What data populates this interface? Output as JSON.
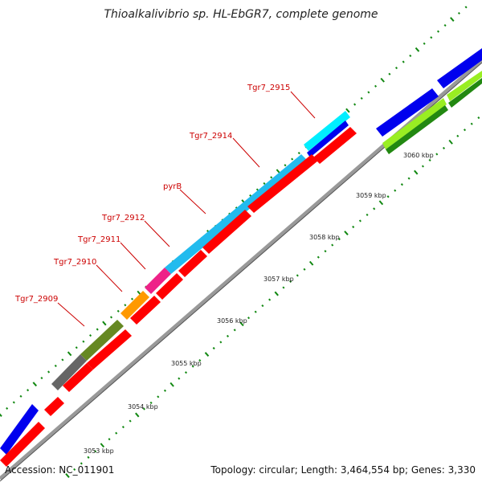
{
  "header": {
    "title": "Thioalkalivibrio sp. HL-EbGR7, complete genome"
  },
  "footer": {
    "accession": "Accession: NC_011901",
    "summary": "Topology: circular; Length: 3,464,554 bp; Genes: 3,330"
  },
  "colors": {
    "backbone": "#999999",
    "tick_green": "#118811",
    "gene_red": "#ff0000",
    "gene_blue": "#0000ee",
    "gene_cyan": "#22bbee",
    "gene_bright_cyan": "#00eeff",
    "gene_magenta": "#ee2288",
    "gene_orange": "#ff9900",
    "gene_olive": "#668822",
    "gene_gray": "#666666",
    "gene_lime": "#99ee22",
    "gene_green": "#228811",
    "label_red": "#cc0000"
  },
  "genes": [
    {
      "label": "Tgr7_2915",
      "color": "gene_bright_cyan"
    },
    {
      "label": "Tgr7_2914",
      "color": "gene_cyan"
    },
    {
      "label": "pyrB",
      "color": "gene_cyan"
    },
    {
      "label": "Tgr7_2912",
      "color": "gene_cyan"
    },
    {
      "label": "Tgr7_2911",
      "color": "gene_magenta"
    },
    {
      "label": "Tgr7_2910",
      "color": "gene_orange"
    },
    {
      "label": "Tgr7_2909",
      "color": "gene_olive"
    }
  ],
  "scale_labels": [
    "3053 kbp",
    "3054 kbp",
    "3055 kbp",
    "3056 kbp",
    "3057 kbp",
    "3058 kbp",
    "3059 kbp",
    "3060 kbp"
  ]
}
